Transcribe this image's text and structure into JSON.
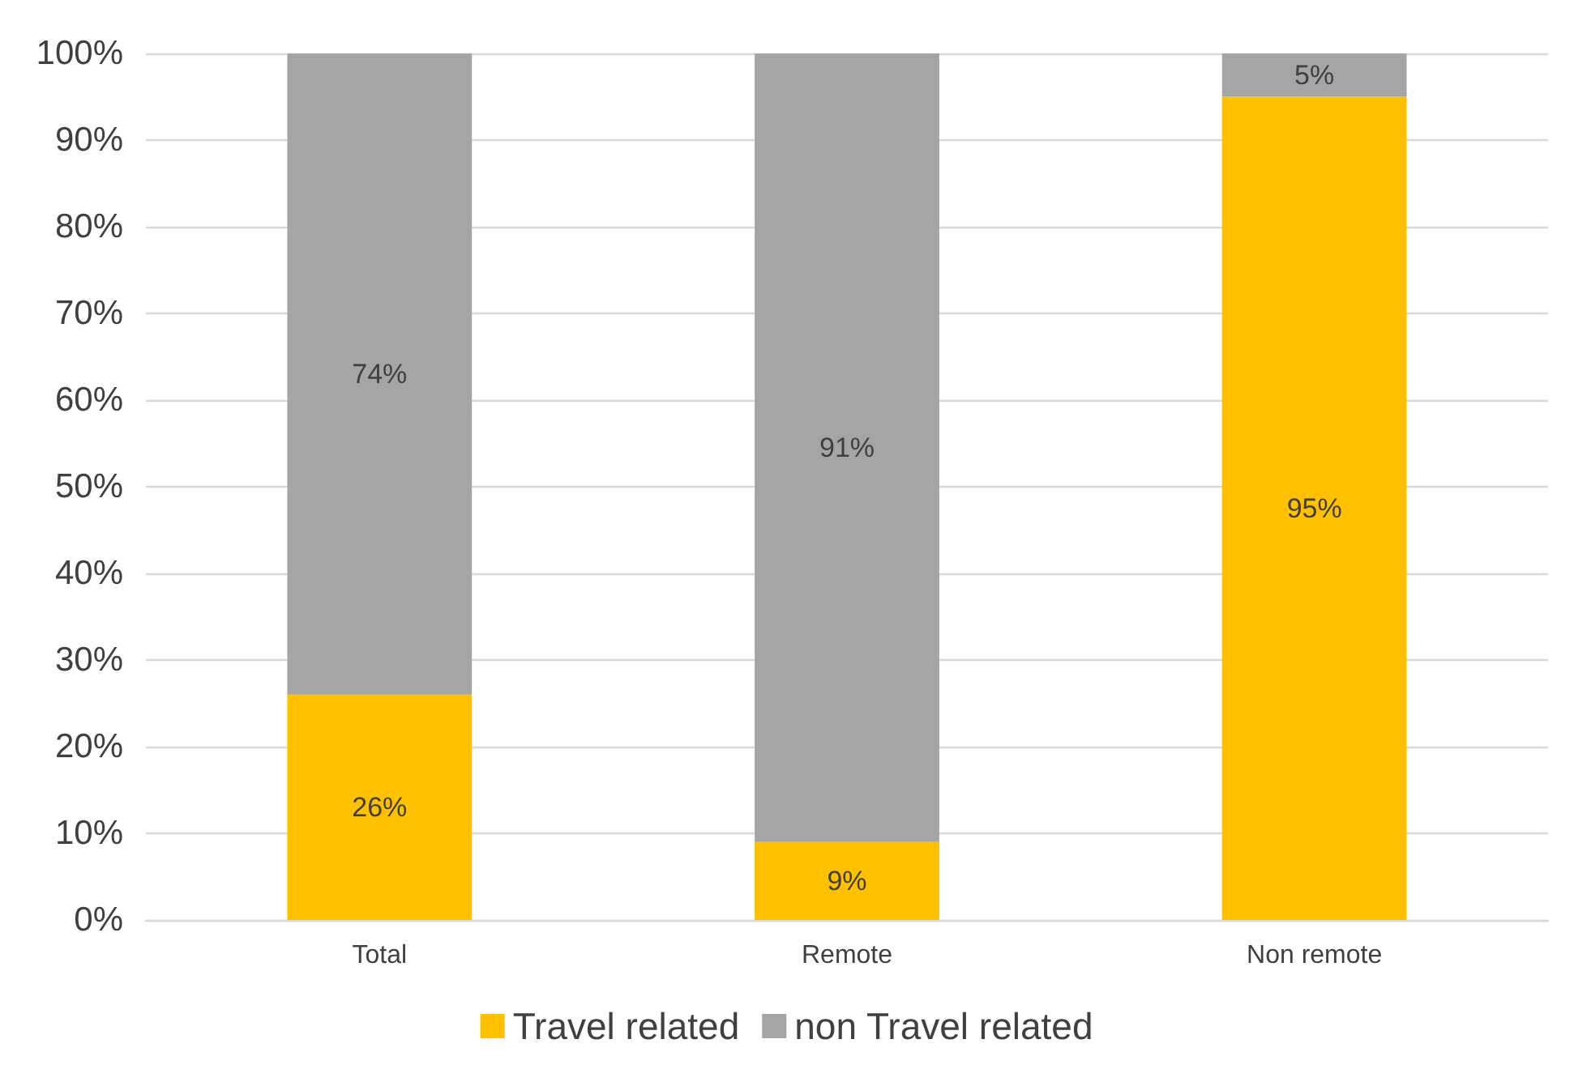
{
  "chart_data": {
    "type": "bar",
    "stacked": true,
    "categories": [
      "Total",
      "Remote",
      "Non remote"
    ],
    "series": [
      {
        "name": "Travel related",
        "color": "#ffc000",
        "values": [
          26,
          9,
          95
        ],
        "value_labels": [
          "26%",
          "9%",
          "95%"
        ]
      },
      {
        "name": "non Travel related",
        "color": "#a5a5a5",
        "values": [
          74,
          91,
          5
        ],
        "value_labels": [
          "74%",
          "91%",
          "5%"
        ]
      }
    ],
    "ylim": [
      0,
      100
    ],
    "yticks": [
      {
        "value": 0,
        "label": "0%"
      },
      {
        "value": 10,
        "label": "10%"
      },
      {
        "value": 20,
        "label": "20%"
      },
      {
        "value": 30,
        "label": "30%"
      },
      {
        "value": 40,
        "label": "40%"
      },
      {
        "value": 50,
        "label": "50%"
      },
      {
        "value": 60,
        "label": "60%"
      },
      {
        "value": 70,
        "label": "70%"
      },
      {
        "value": 80,
        "label": "80%"
      },
      {
        "value": 90,
        "label": "90%"
      },
      {
        "value": 100,
        "label": "100%"
      }
    ],
    "grid": "y",
    "legend": "bottom"
  }
}
